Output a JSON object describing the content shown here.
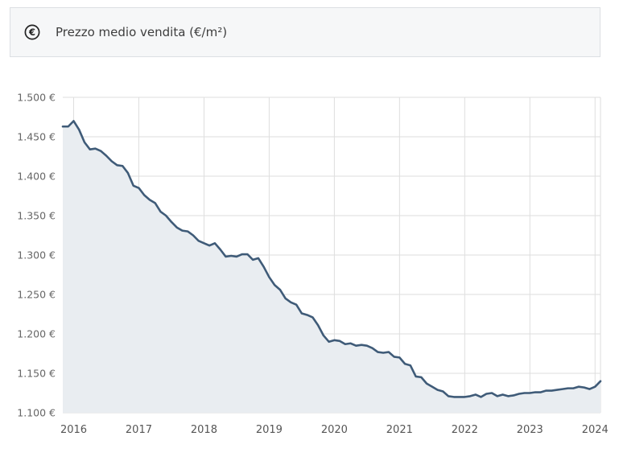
{
  "header": {
    "icon": "euro-circle-icon",
    "title": "Prezzo medio vendita (€/m²)"
  },
  "chart_data": {
    "type": "area",
    "title": "Prezzo medio vendita (€/m²)",
    "xlabel": "",
    "ylabel": "",
    "ylim": [
      1100,
      1500
    ],
    "xlim": [
      "2015-11",
      "2024-02"
    ],
    "grid": true,
    "y_ticks": [
      "1.500 €",
      "1.450 €",
      "1.400 €",
      "1.350 €",
      "1.300 €",
      "1.250 €",
      "1.200 €",
      "1.150 €",
      "1.100 €"
    ],
    "y_tick_values": [
      1500,
      1450,
      1400,
      1350,
      1300,
      1250,
      1200,
      1150,
      1100
    ],
    "x_ticks": [
      "2016",
      "2017",
      "2018",
      "2019",
      "2020",
      "2021",
      "2022",
      "2023",
      "2024"
    ],
    "colors": {
      "line": "#3f5b78",
      "fill": "#e9edf1",
      "grid": "#dedede"
    },
    "series": [
      {
        "x": [
          "2015-11",
          "2015-12",
          "2016-01",
          "2016-02",
          "2016-03",
          "2016-04",
          "2016-05",
          "2016-06",
          "2016-07",
          "2016-08",
          "2016-09",
          "2016-10",
          "2016-11",
          "2016-12",
          "2017-01",
          "2017-02",
          "2017-03",
          "2017-04",
          "2017-05",
          "2017-06",
          "2017-07",
          "2017-08",
          "2017-09",
          "2017-10",
          "2017-11",
          "2017-12",
          "2018-01",
          "2018-02",
          "2018-03",
          "2018-04",
          "2018-05",
          "2018-06",
          "2018-07",
          "2018-08",
          "2018-09",
          "2018-10",
          "2018-11",
          "2018-12",
          "2019-01",
          "2019-02",
          "2019-03",
          "2019-04",
          "2019-05",
          "2019-06",
          "2019-07",
          "2019-08",
          "2019-09",
          "2019-10",
          "2019-11",
          "2019-12",
          "2020-01",
          "2020-02",
          "2020-03",
          "2020-04",
          "2020-05",
          "2020-06",
          "2020-07",
          "2020-08",
          "2020-09",
          "2020-10",
          "2020-11",
          "2020-12",
          "2021-01",
          "2021-02",
          "2021-03",
          "2021-04",
          "2021-05",
          "2021-06",
          "2021-07",
          "2021-08",
          "2021-09",
          "2021-10",
          "2021-11",
          "2021-12",
          "2022-01",
          "2022-02",
          "2022-03",
          "2022-04",
          "2022-05",
          "2022-06",
          "2022-07",
          "2022-08",
          "2022-09",
          "2022-10",
          "2022-11",
          "2022-12",
          "2023-01",
          "2023-02",
          "2023-03",
          "2023-04",
          "2023-05",
          "2023-06",
          "2023-07",
          "2023-08",
          "2023-09",
          "2023-10",
          "2023-11",
          "2023-12",
          "2024-01",
          "2024-02"
        ],
        "values": [
          1463,
          1463,
          1470,
          1459,
          1443,
          1434,
          1435,
          1432,
          1426,
          1419,
          1414,
          1413,
          1404,
          1388,
          1385,
          1376,
          1370,
          1366,
          1355,
          1350,
          1342,
          1335,
          1331,
          1330,
          1325,
          1318,
          1315,
          1312,
          1315,
          1307,
          1298,
          1299,
          1298,
          1301,
          1301,
          1294,
          1296,
          1285,
          1272,
          1262,
          1256,
          1245,
          1240,
          1237,
          1226,
          1224,
          1221,
          1211,
          1198,
          1190,
          1192,
          1191,
          1187,
          1188,
          1185,
          1186,
          1185,
          1182,
          1177,
          1176,
          1177,
          1171,
          1170,
          1162,
          1160,
          1146,
          1145,
          1137,
          1133,
          1129,
          1127,
          1121,
          1120,
          1120,
          1120,
          1121,
          1123,
          1120,
          1124,
          1125,
          1121,
          1123,
          1121,
          1122,
          1124,
          1125,
          1125,
          1126,
          1126,
          1128,
          1128,
          1129,
          1130,
          1131,
          1131,
          1133,
          1132,
          1130,
          1133,
          1140
        ]
      }
    ]
  }
}
